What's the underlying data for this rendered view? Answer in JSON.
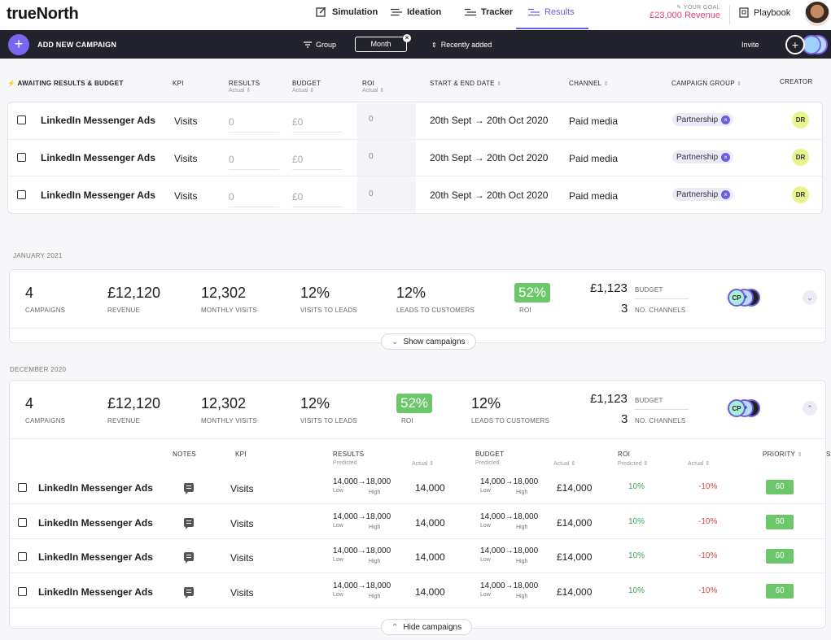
{
  "app": {
    "logo": "trueNorth"
  },
  "nav": {
    "tabs": [
      {
        "label": "Simulation"
      },
      {
        "label": "Ideation"
      },
      {
        "label": "Tracker"
      },
      {
        "label": "Results"
      }
    ],
    "goal_label": "YOUR GOAL",
    "goal_value": "£23,000 Revenue",
    "playbook": "Playbook"
  },
  "toolbar": {
    "add_label": "ADD NEW CAMPAIGN",
    "group": "Group",
    "month": "Month",
    "recent": "Recently added",
    "invite": "Invite",
    "invite_avatar": "P"
  },
  "awaiting": {
    "title": "AWAITING RESULTS & BUDGET",
    "headers": {
      "kpi": "KPI",
      "results": "RESULTS",
      "results_sub": "Actual",
      "budget": "BUDGET",
      "budget_sub": "Actual",
      "roi": "ROI",
      "roi_sub": "Actual",
      "dates": "START & END DATE",
      "channel": "CHANNEL",
      "group": "CAMPAIGN GROUP",
      "creator": "CREATOR"
    },
    "rows": [
      {
        "name": "LinkedIn Messenger Ads",
        "kpi": "Visits",
        "results": "0",
        "budget": "£0",
        "roi": "0",
        "dates": "20th Sept → 20th Oct 2020",
        "channel": "Paid media",
        "group": "Partnership",
        "creator": "DR"
      },
      {
        "name": "LinkedIn Messenger Ads",
        "kpi": "Visits",
        "results": "0",
        "budget": "£0",
        "roi": "0",
        "dates": "20th Sept → 20th Oct 2020",
        "channel": "Paid media",
        "group": "Partnership",
        "creator": "DR"
      },
      {
        "name": "LinkedIn Messenger Ads",
        "kpi": "Visits",
        "results": "0",
        "budget": "£0",
        "roi": "0",
        "dates": "20th Sept → 20th Oct 2020",
        "channel": "Paid media",
        "group": "Partnership",
        "creator": "DR"
      }
    ]
  },
  "jan": {
    "label": "JANUARY 2021",
    "campaigns": "4",
    "campaigns_l": "CAMPAIGNS",
    "revenue": "£12,120",
    "revenue_l": "REVENUE",
    "visits": "12,302",
    "visits_l": "MONTHLY VISITS",
    "v2l": "12%",
    "v2l_l": "VISITS TO LEADS",
    "l2c": "12%",
    "l2c_l": "LEADS TO CUSTOMERS",
    "roi": "52%",
    "roi_l": "ROI",
    "budget": "£1,123",
    "budget_l": "BUDGET",
    "channels": "3",
    "channels_l": "NO. CHANNELS",
    "av1": "CP",
    "av2": "P",
    "toggle": "Show campaigns"
  },
  "dec": {
    "label": "DECEMBER 2020",
    "campaigns": "4",
    "campaigns_l": "CAMPAIGNS",
    "revenue": "£12,120",
    "revenue_l": "REVENUE",
    "visits": "12,302",
    "visits_l": "MONTHLY VISITS",
    "v2l": "12%",
    "v2l_l": "VISITS TO LEADS",
    "roi": "52%",
    "roi_l": "ROI",
    "l2c": "12%",
    "l2c_l": "LEADS TO CUSTOMERS",
    "budget": "£1,123",
    "budget_l": "BUDGET",
    "channels": "3",
    "channels_l": "NO. CHANNELS",
    "av1": "CP",
    "av2": "P",
    "toggle": "Hide campaigns"
  },
  "detail": {
    "headers": {
      "notes": "NOTES",
      "kpi": "KPI",
      "results": "RESULTS",
      "predicted": "Predicted",
      "actual": "Actual",
      "budget": "BUDGET",
      "roi": "ROI",
      "priority": "PRIORITY",
      "extra": "S"
    },
    "rows": [
      {
        "name": "LinkedIn Messenger Ads",
        "kpi": "Visits",
        "res_range": "14,000→18,000",
        "low": "Low",
        "high": "High",
        "res_actual": "14,000",
        "bud_range": "14,000→18,000",
        "bud_actual": "£14,000",
        "roi_pred": "10%",
        "roi_actual": "-10%",
        "priority": "60"
      },
      {
        "name": "LinkedIn Messenger Ads",
        "kpi": "Visits",
        "res_range": "14,000→18,000",
        "low": "Low",
        "high": "High",
        "res_actual": "14,000",
        "bud_range": "14,000→18,000",
        "bud_actual": "£14,000",
        "roi_pred": "10%",
        "roi_actual": "-10%",
        "priority": "60"
      },
      {
        "name": "LinkedIn Messenger Ads",
        "kpi": "Visits",
        "res_range": "14,000→18,000",
        "low": "Low",
        "high": "High",
        "res_actual": "14,000",
        "bud_range": "14,000→18,000",
        "bud_actual": "£14,000",
        "roi_pred": "10%",
        "roi_actual": "-10%",
        "priority": "60"
      },
      {
        "name": "LinkedIn Messenger Ads",
        "kpi": "Visits",
        "res_range": "14,000→18,000",
        "low": "Low",
        "high": "High",
        "res_actual": "14,000",
        "bud_range": "14,000→18,000",
        "bud_actual": "£14,000",
        "roi_pred": "10%",
        "roi_actual": "-10%",
        "priority": "60"
      }
    ]
  }
}
